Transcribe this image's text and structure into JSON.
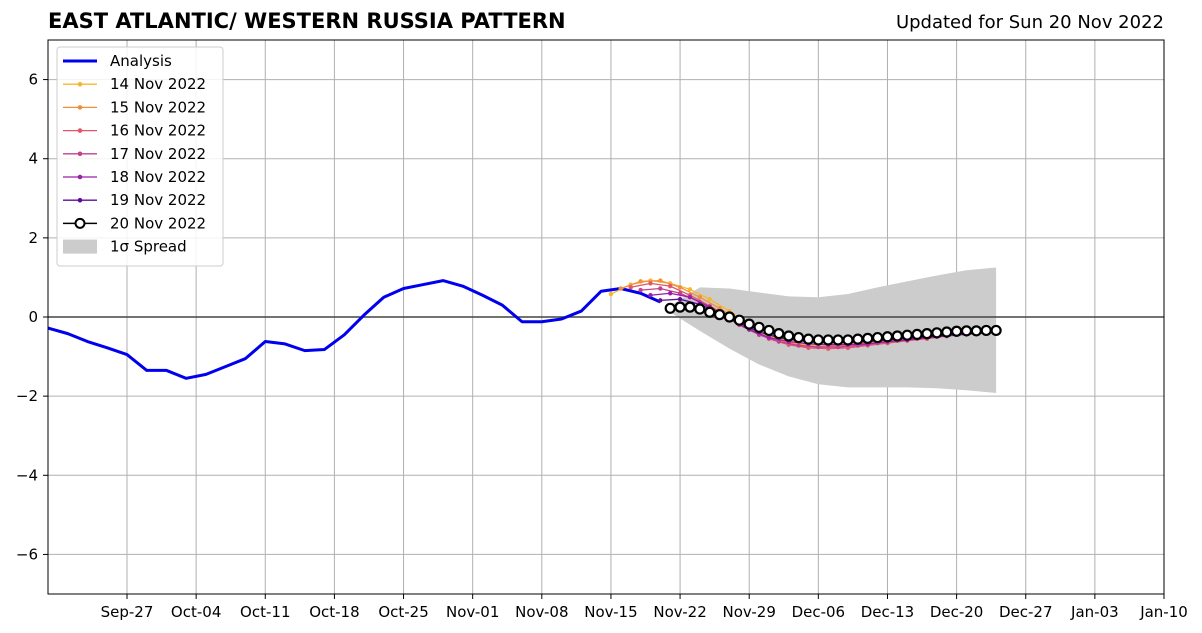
{
  "header": {
    "title": "EAST ATLANTIC/ WESTERN RUSSIA PATTERN",
    "subtitle": "Updated for Sun 20 Nov 2022"
  },
  "chart_data": {
    "type": "line",
    "title": "EAST ATLANTIC/ WESTERN RUSSIA PATTERN",
    "subtitle": "Updated for Sun 20 Nov 2022",
    "xlabel": "",
    "ylabel": "",
    "xlim": [
      "2022-09-19",
      "2023-01-10"
    ],
    "ylim": [
      -7,
      7
    ],
    "grid": true,
    "legend_position": "top-left",
    "x_ticks": [
      "Sep-27",
      "Oct-04",
      "Oct-11",
      "Oct-18",
      "Oct-25",
      "Nov-01",
      "Nov-08",
      "Nov-15",
      "Nov-22",
      "Nov-29",
      "Dec-06",
      "Dec-13",
      "Dec-20",
      "Dec-27",
      "Jan-03",
      "Jan-10"
    ],
    "x_tick_dates": [
      "2022-09-27",
      "2022-10-04",
      "2022-10-11",
      "2022-10-18",
      "2022-10-25",
      "2022-11-01",
      "2022-11-08",
      "2022-11-15",
      "2022-11-22",
      "2022-11-29",
      "2022-12-06",
      "2022-12-13",
      "2022-12-20",
      "2022-12-27",
      "2023-01-03",
      "2023-01-10"
    ],
    "y_ticks": [
      -6,
      -4,
      -2,
      0,
      2,
      4,
      6
    ],
    "y_tick_labels": [
      "−6",
      "−4",
      "−2",
      "0",
      "2",
      "4",
      "6"
    ],
    "legend": [
      "Analysis",
      "14 Nov 2022",
      "15 Nov 2022",
      "16 Nov 2022",
      "17 Nov 2022",
      "18 Nov 2022",
      "19 Nov 2022",
      "20 Nov 2022",
      "1σ Spread"
    ],
    "analysis": {
      "name": "Analysis",
      "color": "#0000ee",
      "dates": [
        "2022-09-19",
        "2022-09-21",
        "2022-09-23",
        "2022-09-25",
        "2022-09-27",
        "2022-09-29",
        "2022-10-01",
        "2022-10-03",
        "2022-10-05",
        "2022-10-07",
        "2022-10-09",
        "2022-10-11",
        "2022-10-13",
        "2022-10-15",
        "2022-10-17",
        "2022-10-19",
        "2022-10-21",
        "2022-10-23",
        "2022-10-25",
        "2022-10-27",
        "2022-10-29",
        "2022-10-31",
        "2022-11-02",
        "2022-11-04",
        "2022-11-06",
        "2022-11-08",
        "2022-11-10",
        "2022-11-12",
        "2022-11-14",
        "2022-11-16",
        "2022-11-18",
        "2022-11-20"
      ],
      "values": [
        -0.28,
        -0.42,
        -0.62,
        -0.78,
        -0.95,
        -1.35,
        -1.35,
        -1.55,
        -1.45,
        -1.25,
        -1.05,
        -0.62,
        -0.68,
        -0.85,
        -0.82,
        -0.45,
        0.05,
        0.5,
        0.72,
        0.82,
        0.92,
        0.78,
        0.55,
        0.3,
        -0.12,
        -0.12,
        -0.05,
        0.15,
        0.65,
        0.72,
        0.6,
        0.38
      ]
    },
    "series": [
      {
        "name": "14 Nov 2022",
        "color": "#f5b731",
        "dates": [
          "2022-11-15",
          "2022-11-17",
          "2022-11-19",
          "2022-11-21",
          "2022-11-23",
          "2022-11-25",
          "2022-11-27",
          "2022-11-29",
          "2022-12-01",
          "2022-12-03",
          "2022-12-05",
          "2022-12-07",
          "2022-12-09",
          "2022-12-11",
          "2022-12-13",
          "2022-12-15",
          "2022-12-17",
          "2022-12-19",
          "2022-12-21"
        ],
        "values": [
          0.58,
          0.82,
          0.92,
          0.85,
          0.7,
          0.45,
          0.15,
          -0.2,
          -0.45,
          -0.62,
          -0.72,
          -0.75,
          -0.72,
          -0.65,
          -0.58,
          -0.5,
          -0.42,
          -0.38,
          -0.35
        ]
      },
      {
        "name": "15 Nov 2022",
        "color": "#f28f3b",
        "dates": [
          "2022-11-16",
          "2022-11-18",
          "2022-11-20",
          "2022-11-22",
          "2022-11-24",
          "2022-11-26",
          "2022-11-28",
          "2022-11-30",
          "2022-12-02",
          "2022-12-04",
          "2022-12-06",
          "2022-12-08",
          "2022-12-10",
          "2022-12-12",
          "2022-12-14",
          "2022-12-16",
          "2022-12-18",
          "2022-12-20",
          "2022-12-22"
        ],
        "values": [
          0.72,
          0.9,
          0.92,
          0.75,
          0.5,
          0.22,
          -0.1,
          -0.38,
          -0.58,
          -0.7,
          -0.75,
          -0.72,
          -0.68,
          -0.62,
          -0.55,
          -0.48,
          -0.42,
          -0.38,
          -0.35
        ]
      },
      {
        "name": "16 Nov 2022",
        "color": "#e0576b",
        "dates": [
          "2022-11-17",
          "2022-11-19",
          "2022-11-21",
          "2022-11-23",
          "2022-11-25",
          "2022-11-27",
          "2022-11-29",
          "2022-12-01",
          "2022-12-03",
          "2022-12-05",
          "2022-12-07",
          "2022-12-09",
          "2022-12-11",
          "2022-12-13",
          "2022-12-15",
          "2022-12-17",
          "2022-12-19",
          "2022-12-21",
          "2022-12-23"
        ],
        "values": [
          0.75,
          0.85,
          0.78,
          0.55,
          0.28,
          0.0,
          -0.3,
          -0.55,
          -0.7,
          -0.78,
          -0.8,
          -0.78,
          -0.72,
          -0.66,
          -0.6,
          -0.55,
          -0.48,
          -0.42,
          -0.38
        ]
      },
      {
        "name": "17 Nov 2022",
        "color": "#c43f8c",
        "dates": [
          "2022-11-18",
          "2022-11-20",
          "2022-11-22",
          "2022-11-24",
          "2022-11-26",
          "2022-11-28",
          "2022-11-30",
          "2022-12-02",
          "2022-12-04",
          "2022-12-06",
          "2022-12-08",
          "2022-12-10",
          "2022-12-12",
          "2022-12-14",
          "2022-12-16",
          "2022-12-18",
          "2022-12-20",
          "2022-12-22"
        ],
        "values": [
          0.68,
          0.72,
          0.6,
          0.38,
          0.1,
          -0.2,
          -0.45,
          -0.62,
          -0.72,
          -0.76,
          -0.76,
          -0.72,
          -0.66,
          -0.6,
          -0.55,
          -0.5,
          -0.45,
          -0.4
        ]
      },
      {
        "name": "18 Nov 2022",
        "color": "#9a1ea8",
        "dates": [
          "2022-11-19",
          "2022-11-21",
          "2022-11-23",
          "2022-11-25",
          "2022-11-27",
          "2022-11-29",
          "2022-12-01",
          "2022-12-03",
          "2022-12-05",
          "2022-12-07",
          "2022-12-09",
          "2022-12-11",
          "2022-12-13",
          "2022-12-15",
          "2022-12-17",
          "2022-12-19",
          "2022-12-21",
          "2022-12-23"
        ],
        "values": [
          0.55,
          0.6,
          0.5,
          0.25,
          -0.05,
          -0.32,
          -0.52,
          -0.62,
          -0.68,
          -0.7,
          -0.7,
          -0.68,
          -0.62,
          -0.58,
          -0.52,
          -0.48,
          -0.44,
          -0.4
        ]
      },
      {
        "name": "19 Nov 2022",
        "color": "#5a0f9c",
        "dates": [
          "2022-11-20",
          "2022-11-22",
          "2022-11-24",
          "2022-11-26",
          "2022-11-28",
          "2022-11-30",
          "2022-12-02",
          "2022-12-04",
          "2022-12-06",
          "2022-12-08",
          "2022-12-10",
          "2022-12-12",
          "2022-12-14",
          "2022-12-16",
          "2022-12-18",
          "2022-12-20",
          "2022-12-22",
          "2022-12-24"
        ],
        "values": [
          0.42,
          0.45,
          0.32,
          0.1,
          -0.15,
          -0.38,
          -0.52,
          -0.6,
          -0.64,
          -0.65,
          -0.64,
          -0.6,
          -0.56,
          -0.52,
          -0.48,
          -0.44,
          -0.4,
          -0.38
        ]
      },
      {
        "name": "20 Nov 2022",
        "color": "#000000",
        "marker": "open-circle",
        "dates": [
          "2022-11-21",
          "2022-11-22",
          "2022-11-23",
          "2022-11-24",
          "2022-11-25",
          "2022-11-26",
          "2022-11-27",
          "2022-11-28",
          "2022-11-29",
          "2022-11-30",
          "2022-12-01",
          "2022-12-02",
          "2022-12-03",
          "2022-12-04",
          "2022-12-05",
          "2022-12-06",
          "2022-12-07",
          "2022-12-08",
          "2022-12-09",
          "2022-12-10",
          "2022-12-11",
          "2022-12-12",
          "2022-12-13",
          "2022-12-14",
          "2022-12-15",
          "2022-12-16",
          "2022-12-17",
          "2022-12-18",
          "2022-12-19",
          "2022-12-20",
          "2022-12-21",
          "2022-12-22",
          "2022-12-23",
          "2022-12-24"
        ],
        "values": [
          0.22,
          0.25,
          0.25,
          0.2,
          0.12,
          0.06,
          0.0,
          -0.08,
          -0.18,
          -0.26,
          -0.34,
          -0.42,
          -0.48,
          -0.52,
          -0.56,
          -0.58,
          -0.58,
          -0.58,
          -0.58,
          -0.56,
          -0.54,
          -0.52,
          -0.5,
          -0.48,
          -0.46,
          -0.44,
          -0.42,
          -0.4,
          -0.38,
          -0.36,
          -0.35,
          -0.35,
          -0.34,
          -0.34
        ]
      }
    ],
    "spread": {
      "name": "1σ Spread",
      "color": "#cccccc",
      "dates": [
        "2022-11-21",
        "2022-11-24",
        "2022-11-27",
        "2022-11-30",
        "2022-12-03",
        "2022-12-06",
        "2022-12-09",
        "2022-12-12",
        "2022-12-15",
        "2022-12-18",
        "2022-12-21",
        "2022-12-24"
      ],
      "upper": [
        0.28,
        0.75,
        0.72,
        0.62,
        0.52,
        0.5,
        0.58,
        0.75,
        0.9,
        1.05,
        1.18,
        1.25
      ],
      "lower": [
        0.12,
        -0.35,
        -0.8,
        -1.2,
        -1.5,
        -1.7,
        -1.78,
        -1.78,
        -1.78,
        -1.8,
        -1.85,
        -1.92
      ]
    }
  }
}
